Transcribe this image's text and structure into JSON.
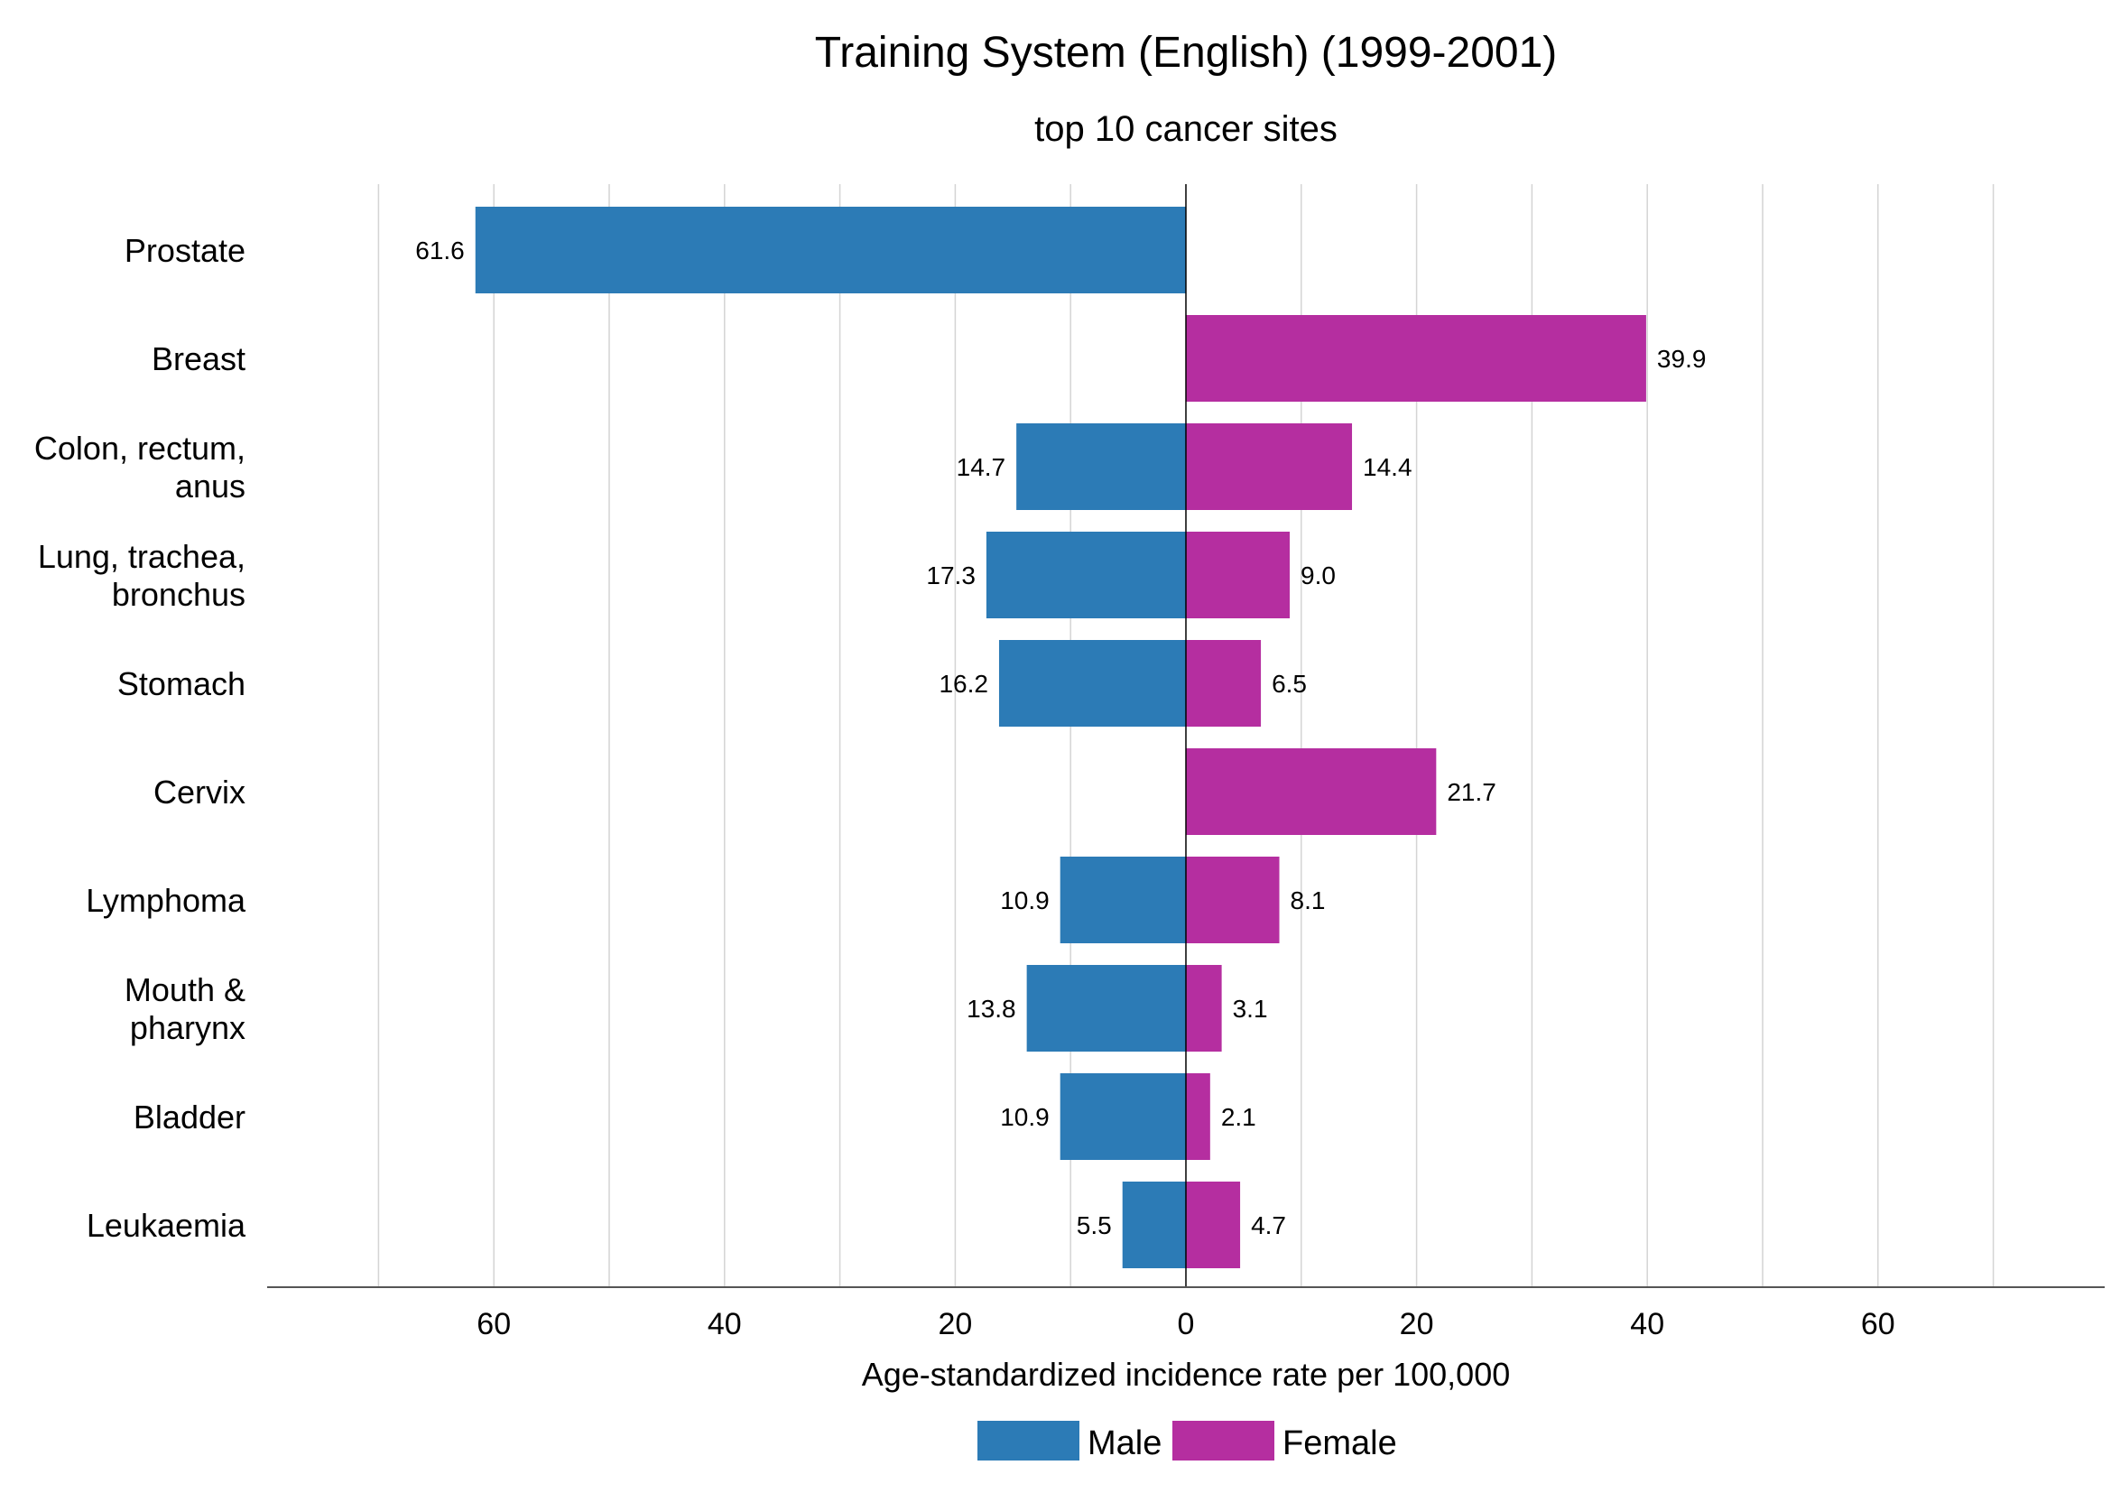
{
  "chart_data": {
    "type": "bar",
    "orientation": "horizontal",
    "layout": "diverging",
    "title": "Training System (English) (1999-2001)",
    "subtitle": "top 10 cancer sites",
    "xlabel": "Age-standardized incidence rate per 100,000",
    "xlim": [
      -80,
      80
    ],
    "xticks": [
      -60,
      -40,
      -20,
      0,
      20,
      40,
      60
    ],
    "xtick_labels": [
      "60",
      "40",
      "20",
      "0",
      "20",
      "40",
      "60"
    ],
    "gridlines": [
      -70,
      -60,
      -50,
      -40,
      -30,
      -20,
      -10,
      10,
      20,
      30,
      40,
      50,
      60,
      70
    ],
    "categories": [
      [
        "Prostate"
      ],
      [
        "Breast"
      ],
      [
        "Colon, rectum,",
        "anus"
      ],
      [
        "Lung, trachea,",
        "bronchus"
      ],
      [
        "Stomach"
      ],
      [
        "Cervix"
      ],
      [
        "Lymphoma"
      ],
      [
        "Mouth &",
        "pharynx"
      ],
      [
        "Bladder"
      ],
      [
        "Leukaemia"
      ]
    ],
    "series": [
      {
        "name": "Male",
        "color": "#2C7BB6",
        "side": "left",
        "values": [
          61.6,
          null,
          14.7,
          17.3,
          16.2,
          null,
          10.9,
          13.8,
          10.9,
          5.5
        ],
        "labels": [
          "61.6",
          "",
          "14.7",
          "17.3",
          "16.2",
          "",
          "10.9",
          "13.8",
          "10.9",
          "5.5"
        ]
      },
      {
        "name": "Female",
        "color": "#B52EA0",
        "side": "right",
        "values": [
          null,
          39.9,
          14.4,
          9.0,
          6.5,
          21.7,
          8.1,
          3.1,
          2.1,
          4.7
        ],
        "labels": [
          "",
          "39.9",
          "14.4",
          "9.0",
          "6.5",
          "21.7",
          "8.1",
          "3.1",
          "2.1",
          "4.7"
        ]
      }
    ],
    "legend": {
      "position": "bottom"
    }
  }
}
